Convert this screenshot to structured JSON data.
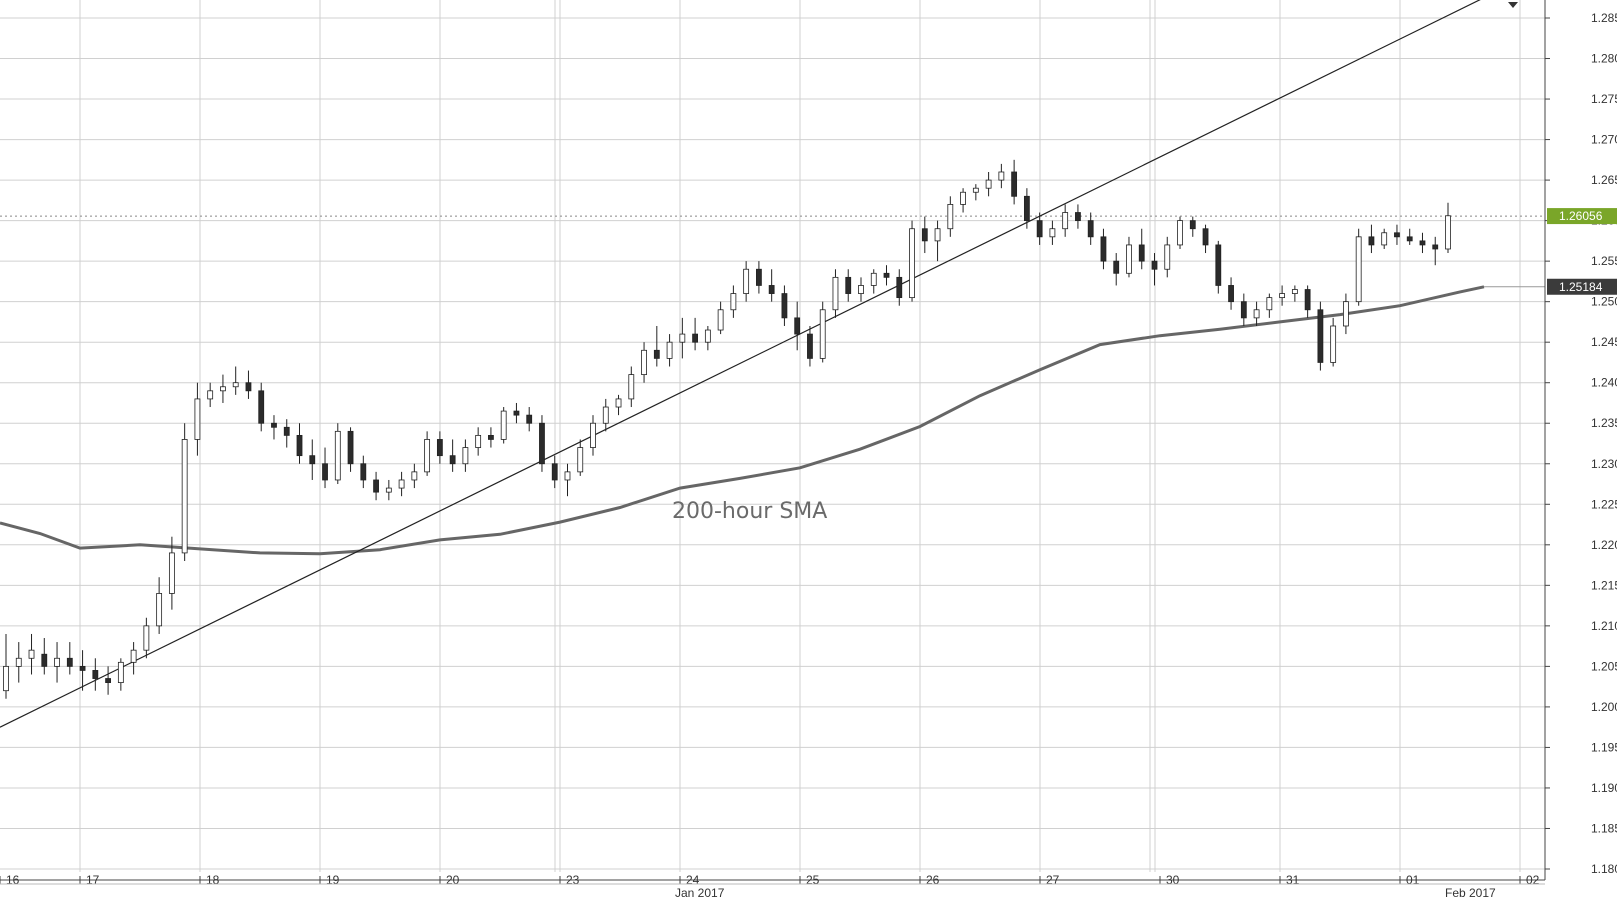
{
  "chart_data": {
    "type": "candlestick",
    "title": "",
    "xlabel": "",
    "ylabel": "",
    "ylim": [
      1.1775,
      1.2875
    ],
    "y_ticks": [
      "1.1800",
      "1.1850",
      "1.1900",
      "1.1950",
      "1.2000",
      "1.2050",
      "1.2100",
      "1.2150",
      "1.2200",
      "1.2250",
      "1.2300",
      "1.2350",
      "1.2400",
      "1.2450",
      "1.2500",
      "1.2550",
      "1.2600",
      "1.2650",
      "1.2700",
      "1.2750",
      "1.2800",
      "1.2850"
    ],
    "x_day_labels": [
      "16",
      "17",
      "18",
      "19",
      "20",
      "23",
      "24",
      "25",
      "26",
      "27",
      "30",
      "31",
      "01",
      "02"
    ],
    "x_month_labels": [
      "Jan 2017",
      "Feb 2017"
    ],
    "last_price_label": "1.26056",
    "last_price": 1.26056,
    "sma_price_label": "1.25184",
    "sma_price": 1.25184,
    "annotation": "200-hour SMA",
    "colors": {
      "bull": "#ffffff",
      "bear": "#2b2b2b",
      "sma": "#666666",
      "price_badge": "#7aa629",
      "sma_badge": "#3b3b3b",
      "grid": "#d0d0d0"
    },
    "trendline": {
      "start": [
        0.0,
        1.1975
      ],
      "end": [
        12.7,
        1.2875
      ]
    },
    "sma_series": [
      [
        0.0,
        1.2227
      ],
      [
        0.5,
        1.2214
      ],
      [
        1.0,
        1.2196
      ],
      [
        1.5,
        1.22
      ],
      [
        2.0,
        1.2195
      ],
      [
        2.5,
        1.219
      ],
      [
        3.0,
        1.2189
      ],
      [
        3.5,
        1.2194
      ],
      [
        4.0,
        1.2206
      ],
      [
        4.5,
        1.2213
      ],
      [
        5.0,
        1.2228
      ],
      [
        5.5,
        1.2246
      ],
      [
        6.0,
        1.227
      ],
      [
        6.5,
        1.2282
      ],
      [
        7.0,
        1.2295
      ],
      [
        7.5,
        1.2318
      ],
      [
        8.0,
        1.2346
      ],
      [
        8.5,
        1.2384
      ],
      [
        9.0,
        1.2416
      ],
      [
        9.5,
        1.2447
      ],
      [
        10.0,
        1.2458
      ],
      [
        10.5,
        1.2466
      ],
      [
        11.0,
        1.2475
      ],
      [
        11.5,
        1.2484
      ],
      [
        12.0,
        1.2495
      ],
      [
        12.5,
        1.2512
      ],
      [
        12.7,
        1.25184
      ]
    ],
    "candles": [
      [
        1.202,
        1.209,
        1.201,
        1.205
      ],
      [
        1.205,
        1.208,
        1.203,
        1.206
      ],
      [
        1.206,
        1.209,
        1.204,
        1.207
      ],
      [
        1.2065,
        1.2085,
        1.204,
        1.205
      ],
      [
        1.205,
        1.208,
        1.203,
        1.206
      ],
      [
        1.206,
        1.208,
        1.204,
        1.205
      ],
      [
        1.205,
        1.207,
        1.202,
        1.2045
      ],
      [
        1.2045,
        1.206,
        1.202,
        1.2035
      ],
      [
        1.2035,
        1.205,
        1.2015,
        1.203
      ],
      [
        1.203,
        1.206,
        1.202,
        1.2055
      ],
      [
        1.2055,
        1.208,
        1.204,
        1.207
      ],
      [
        1.207,
        1.211,
        1.206,
        1.21
      ],
      [
        1.21,
        1.216,
        1.209,
        1.214
      ],
      [
        1.214,
        1.221,
        1.212,
        1.219
      ],
      [
        1.219,
        1.235,
        1.218,
        1.233
      ],
      [
        1.233,
        1.24,
        1.231,
        1.238
      ],
      [
        1.238,
        1.24,
        1.237,
        1.239
      ],
      [
        1.239,
        1.241,
        1.2375,
        1.2395
      ],
      [
        1.2395,
        1.242,
        1.2385,
        1.24
      ],
      [
        1.24,
        1.2415,
        1.238,
        1.239
      ],
      [
        1.239,
        1.24,
        1.234,
        1.235
      ],
      [
        1.235,
        1.236,
        1.233,
        1.2345
      ],
      [
        1.2345,
        1.2355,
        1.232,
        1.2335
      ],
      [
        1.2335,
        1.235,
        1.23,
        1.231
      ],
      [
        1.231,
        1.233,
        1.228,
        1.23
      ],
      [
        1.23,
        1.232,
        1.227,
        1.228
      ],
      [
        1.228,
        1.235,
        1.2275,
        1.234
      ],
      [
        1.234,
        1.2345,
        1.229,
        1.23
      ],
      [
        1.23,
        1.231,
        1.227,
        1.228
      ],
      [
        1.228,
        1.229,
        1.2255,
        1.2265
      ],
      [
        1.2265,
        1.228,
        1.2255,
        1.227
      ],
      [
        1.227,
        1.229,
        1.226,
        1.228
      ],
      [
        1.228,
        1.23,
        1.227,
        1.229
      ],
      [
        1.229,
        1.234,
        1.2285,
        1.233
      ],
      [
        1.233,
        1.234,
        1.23,
        1.231
      ],
      [
        1.231,
        1.233,
        1.229,
        1.23
      ],
      [
        1.23,
        1.233,
        1.229,
        1.232
      ],
      [
        1.232,
        1.2345,
        1.231,
        1.2335
      ],
      [
        1.2335,
        1.2345,
        1.232,
        1.233
      ],
      [
        1.233,
        1.237,
        1.2325,
        1.2365
      ],
      [
        1.2365,
        1.2375,
        1.235,
        1.236
      ],
      [
        1.236,
        1.237,
        1.234,
        1.235
      ],
      [
        1.235,
        1.236,
        1.229,
        1.23
      ],
      [
        1.23,
        1.231,
        1.227,
        1.228
      ],
      [
        1.228,
        1.23,
        1.226,
        1.229
      ],
      [
        1.229,
        1.233,
        1.2285,
        1.232
      ],
      [
        1.232,
        1.236,
        1.231,
        1.235
      ],
      [
        1.235,
        1.238,
        1.234,
        1.237
      ],
      [
        1.237,
        1.2385,
        1.236,
        1.238
      ],
      [
        1.238,
        1.242,
        1.237,
        1.241
      ],
      [
        1.241,
        1.245,
        1.24,
        1.244
      ],
      [
        1.244,
        1.247,
        1.242,
        1.243
      ],
      [
        1.243,
        1.246,
        1.242,
        1.245
      ],
      [
        1.245,
        1.248,
        1.243,
        1.246
      ],
      [
        1.246,
        1.248,
        1.244,
        1.245
      ],
      [
        1.245,
        1.247,
        1.244,
        1.2465
      ],
      [
        1.2465,
        1.25,
        1.246,
        1.249
      ],
      [
        1.249,
        1.252,
        1.248,
        1.251
      ],
      [
        1.251,
        1.255,
        1.25,
        1.254
      ],
      [
        1.254,
        1.255,
        1.251,
        1.252
      ],
      [
        1.252,
        1.254,
        1.25,
        1.251
      ],
      [
        1.251,
        1.252,
        1.247,
        1.248
      ],
      [
        1.248,
        1.25,
        1.244,
        1.246
      ],
      [
        1.246,
        1.247,
        1.242,
        1.243
      ],
      [
        1.243,
        1.25,
        1.2425,
        1.249
      ],
      [
        1.249,
        1.254,
        1.248,
        1.253
      ],
      [
        1.253,
        1.254,
        1.25,
        1.251
      ],
      [
        1.251,
        1.253,
        1.25,
        1.252
      ],
      [
        1.252,
        1.254,
        1.251,
        1.2535
      ],
      [
        1.2535,
        1.2545,
        1.252,
        1.253
      ],
      [
        1.253,
        1.254,
        1.2495,
        1.2505
      ],
      [
        1.2505,
        1.26,
        1.25,
        1.259
      ],
      [
        1.259,
        1.2605,
        1.256,
        1.2575
      ],
      [
        1.2575,
        1.26,
        1.255,
        1.259
      ],
      [
        1.259,
        1.263,
        1.258,
        1.262
      ],
      [
        1.262,
        1.264,
        1.261,
        1.2635
      ],
      [
        1.2635,
        1.2645,
        1.2625,
        1.264
      ],
      [
        1.264,
        1.266,
        1.263,
        1.265
      ],
      [
        1.265,
        1.267,
        1.264,
        1.266
      ],
      [
        1.266,
        1.2675,
        1.262,
        1.263
      ],
      [
        1.263,
        1.264,
        1.259,
        1.26
      ],
      [
        1.26,
        1.261,
        1.257,
        1.258
      ],
      [
        1.258,
        1.26,
        1.257,
        1.259
      ],
      [
        1.259,
        1.262,
        1.258,
        1.261
      ],
      [
        1.261,
        1.262,
        1.259,
        1.26
      ],
      [
        1.26,
        1.261,
        1.257,
        1.258
      ],
      [
        1.258,
        1.259,
        1.254,
        1.255
      ],
      [
        1.255,
        1.256,
        1.252,
        1.2535
      ],
      [
        1.2535,
        1.258,
        1.253,
        1.257
      ],
      [
        1.257,
        1.259,
        1.254,
        1.255
      ],
      [
        1.255,
        1.256,
        1.252,
        1.254
      ],
      [
        1.254,
        1.258,
        1.253,
        1.257
      ],
      [
        1.257,
        1.2605,
        1.2565,
        1.26
      ],
      [
        1.26,
        1.2605,
        1.258,
        1.259
      ],
      [
        1.259,
        1.2595,
        1.256,
        1.257
      ],
      [
        1.257,
        1.2575,
        1.251,
        1.252
      ],
      [
        1.252,
        1.253,
        1.249,
        1.25
      ],
      [
        1.25,
        1.251,
        1.247,
        1.248
      ],
      [
        1.248,
        1.25,
        1.247,
        1.249
      ],
      [
        1.249,
        1.251,
        1.248,
        1.2505
      ],
      [
        1.2505,
        1.252,
        1.2495,
        1.251
      ],
      [
        1.251,
        1.252,
        1.25,
        1.2515
      ],
      [
        1.2515,
        1.252,
        1.248,
        1.249
      ],
      [
        1.249,
        1.25,
        1.2415,
        1.2425
      ],
      [
        1.2425,
        1.248,
        1.242,
        1.247
      ],
      [
        1.247,
        1.251,
        1.246,
        1.25
      ],
      [
        1.25,
        1.259,
        1.2495,
        1.258
      ],
      [
        1.258,
        1.2595,
        1.256,
        1.257
      ],
      [
        1.257,
        1.259,
        1.2565,
        1.2585
      ],
      [
        1.2585,
        1.2595,
        1.257,
        1.258
      ],
      [
        1.258,
        1.259,
        1.257,
        1.2575
      ],
      [
        1.2575,
        1.2585,
        1.256,
        1.257
      ],
      [
        1.257,
        1.258,
        1.2545,
        1.2565
      ],
      [
        1.2565,
        1.2622,
        1.256,
        1.2606
      ]
    ]
  }
}
